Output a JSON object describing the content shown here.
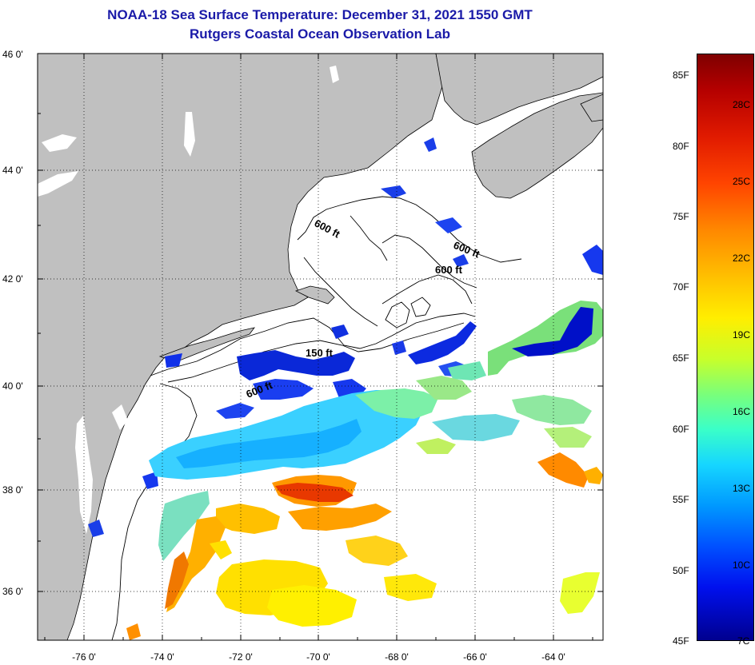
{
  "title": {
    "line1": "NOAA-18 Sea Surface Temperature:  December 31, 2021 1550 GMT",
    "line2": "Rutgers Coastal Ocean Observation Lab"
  },
  "lat_labels": [
    "46 0'",
    "44 0'",
    "42 0'",
    "40 0'",
    "38 0'",
    "36 0'"
  ],
  "lon_labels": [
    "-76 0'",
    "-74 0'",
    "-72 0'",
    "-70 0'",
    "-68 0'",
    "-66 0'",
    "-64 0'"
  ],
  "isobath_labels": [
    "600 ft",
    "600 ft",
    "600 ft",
    "150 ft",
    "600 ft"
  ],
  "colorbar": {
    "fahrenheit": [
      "85F",
      "80F",
      "75F",
      "70F",
      "65F",
      "60F",
      "55F",
      "50F",
      "45F"
    ],
    "celsius": [
      "28C",
      "25C",
      "22C",
      "19C",
      "16C",
      "13C",
      "10C",
      "7C"
    ]
  },
  "colors": {
    "title": "#1a1aa8",
    "land": "#c0c0c0",
    "ocean": "#ffffff"
  }
}
